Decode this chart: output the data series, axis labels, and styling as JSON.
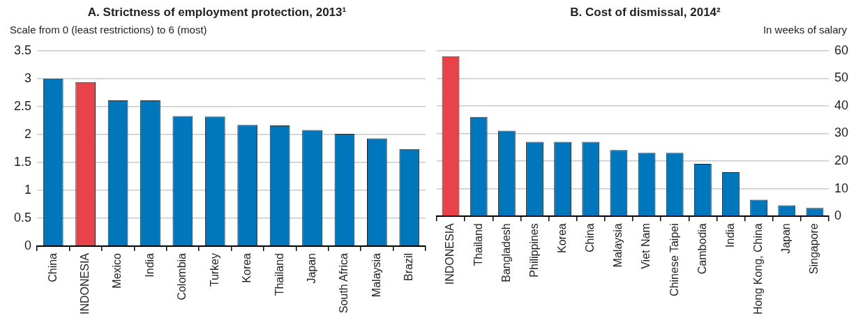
{
  "chart_data": [
    {
      "type": "bar",
      "title": "A. Strictness of employment protection, 2013¹",
      "ylabel": "Scale from 0 (least restrictions) to 6 (most)",
      "categories": [
        "China",
        "INDONESIA",
        "Mexico",
        "India",
        "Colombia",
        "Turkey",
        "Korea",
        "Thailand",
        "Japan",
        "South Africa",
        "Malaysia",
        "Brazil"
      ],
      "series": [
        {
          "values": [
            3.0,
            2.94,
            2.61,
            2.61,
            2.33,
            2.32,
            2.17,
            2.16,
            2.08,
            2.01,
            1.93,
            1.74
          ],
          "colors": [
            "#0077bd",
            "#e8424a",
            "#0077bd",
            "#0077bd",
            "#0077bd",
            "#0077bd",
            "#0077bd",
            "#0077bd",
            "#0077bd",
            "#0077bd",
            "#0077bd",
            "#0077bd"
          ]
        }
      ],
      "ylim": [
        0,
        3.5
      ],
      "yticks": [
        0,
        0.5,
        1,
        1.5,
        2,
        2.5,
        3,
        3.5
      ],
      "grid": "y",
      "legend": false
    },
    {
      "type": "bar",
      "title": "B. Cost of dismissal, 2014²",
      "y2label": "In weeks of salary",
      "categories": [
        "INDONESIA",
        "Thailand",
        "Bangladesh",
        "Philippines",
        "Korea",
        "China",
        "Malaysia",
        "Viet Nam",
        "Chinese Taipei",
        "Cambodia",
        "India",
        "Hong Kong, China",
        "Japan",
        "Singapore"
      ],
      "series": [
        {
          "axis": "y2",
          "values": [
            58,
            36,
            31,
            27,
            27,
            27,
            24,
            23,
            23,
            19,
            16,
            6,
            4,
            3
          ],
          "colors": [
            "#e8424a",
            "#0077bd",
            "#0077bd",
            "#0077bd",
            "#0077bd",
            "#0077bd",
            "#0077bd",
            "#0077bd",
            "#0077bd",
            "#0077bd",
            "#0077bd",
            "#0077bd",
            "#0077bd",
            "#0077bd"
          ]
        }
      ],
      "y2lim": [
        0,
        60
      ],
      "y2ticks": [
        0,
        10,
        20,
        30,
        40,
        50,
        60
      ],
      "grid": "y",
      "legend": false
    }
  ]
}
